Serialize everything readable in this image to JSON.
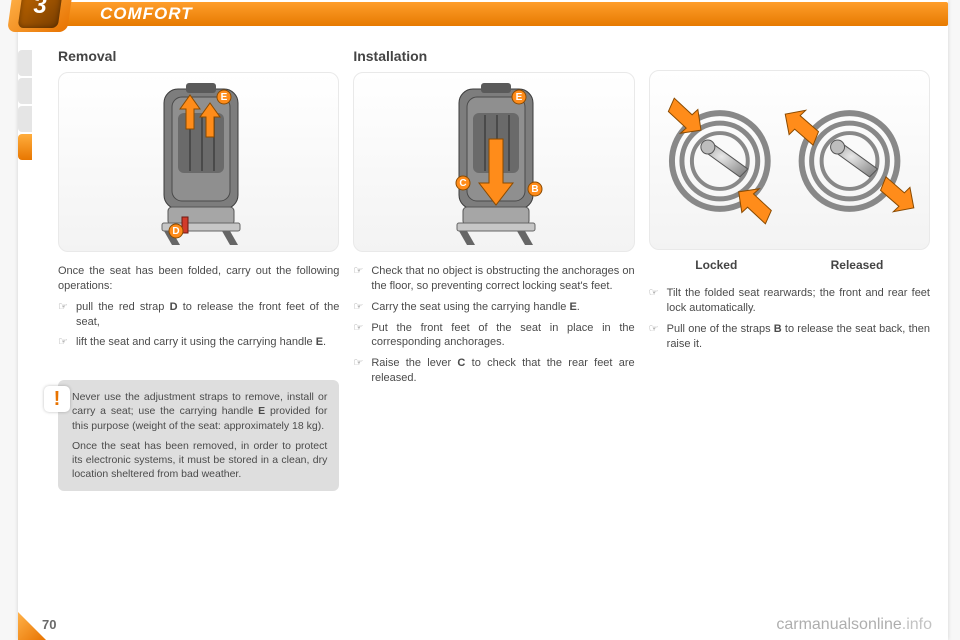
{
  "chapter": {
    "number": "3",
    "title": "COMFORT"
  },
  "pageNumber": "70",
  "watermark": {
    "a": "carmanualsonline",
    "b": ".info"
  },
  "col1": {
    "title": "Removal",
    "intro": "Once the seat has been folded, carry out the following operations:",
    "items": [
      "pull the red strap <b>D</b> to release the front feet of the seat,",
      "lift the seat and carry it using the carrying handle <b>E</b>."
    ],
    "warn": {
      "p1": "Never use the adjustment straps to remove, install or carry a seat; use the carrying handle <b>E</b> provided for this purpose (weight of the seat: approximately 18 kg).",
      "p2": "Once the seat has been removed, in order to protect its electronic systems, it must be stored in a clean, dry location sheltered from bad weather."
    },
    "callouts": {
      "E": "E",
      "D": "D"
    }
  },
  "col2": {
    "title": "Installation",
    "items": [
      "Check that no object is obstructing the anchorages on the ﬂoor, so preventing correct locking seat's feet.",
      "Carry the seat using the carrying handle <b>E</b>.",
      "Put the front feet of the seat in place in the corresponding anchorages.",
      "Raise the lever <b>C</b> to check that the rear feet are released."
    ],
    "callouts": {
      "E": "E",
      "C": "C",
      "B": "B"
    }
  },
  "col3": {
    "locked": "Locked",
    "released": "Released",
    "items": [
      "Tilt the folded seat rearwards; the front and rear feet lock automatically.",
      "Pull one of the straps <b>B</b> to release the seat back, then raise it."
    ]
  },
  "style": {
    "accent": "#e87300",
    "calloutFill": "#ff8c1a",
    "seatFill": "#8a8a8a",
    "seatDark": "#5a5a5a"
  }
}
